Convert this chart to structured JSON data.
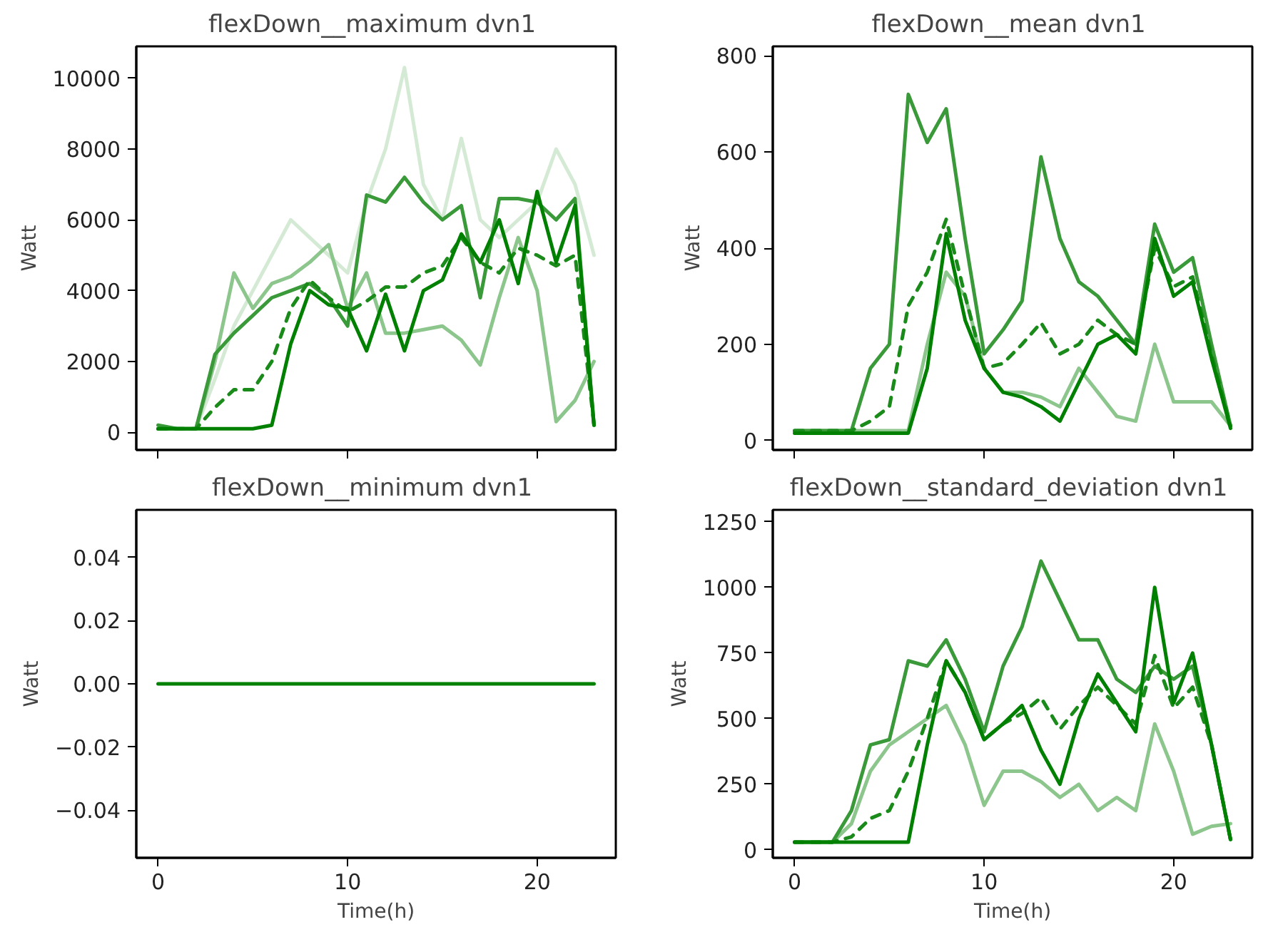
{
  "chart_data": [
    {
      "type": "line",
      "title": "flexDown__maximum  dvn1",
      "ylabel": "Watt",
      "x": [
        0,
        1,
        2,
        3,
        4,
        5,
        6,
        7,
        8,
        9,
        10,
        11,
        12,
        13,
        14,
        15,
        16,
        17,
        18,
        19,
        20,
        21,
        22,
        23
      ],
      "xlim": [
        -1.15,
        24.15
      ],
      "xticks": [
        0,
        10,
        20
      ],
      "ylim": [
        -500,
        10900
      ],
      "yticks": [
        0,
        2000,
        4000,
        6000,
        8000,
        10000
      ],
      "tick_labels": "y",
      "grid": false,
      "series": [
        {
          "color": "#d4ead4",
          "values": [
            100,
            100,
            100,
            1500,
            3000,
            4000,
            5000,
            6000,
            5500,
            5000,
            4500,
            6500,
            8000,
            10300,
            7000,
            6000,
            8300,
            6000,
            5500,
            6000,
            6500,
            8000,
            7000,
            5000
          ]
        },
        {
          "color": "#8cc68c",
          "values": [
            100,
            100,
            100,
            2000,
            4500,
            3500,
            4200,
            4400,
            4800,
            5300,
            3500,
            4500,
            2800,
            2800,
            2900,
            3000,
            2600,
            1900,
            3800,
            5500,
            4000,
            300,
            900,
            2000
          ]
        },
        {
          "color": "#3a9a3a",
          "values": [
            200,
            100,
            100,
            2200,
            2800,
            3300,
            3800,
            4000,
            4200,
            3800,
            3000,
            6700,
            6500,
            7200,
            6500,
            6000,
            6400,
            3800,
            6600,
            6600,
            6500,
            6000,
            6600,
            200
          ]
        },
        {
          "color": "#1a8a1a",
          "line_style": "dashed",
          "values": [
            100,
            100,
            100,
            700,
            1200,
            1200,
            2000,
            3500,
            4300,
            3800,
            3400,
            3700,
            4100,
            4100,
            4500,
            4700,
            5500,
            4800,
            4500,
            5200,
            5000,
            4700,
            5000,
            200
          ]
        },
        {
          "color": "#008000",
          "values": [
            100,
            100,
            100,
            100,
            100,
            100,
            200,
            2500,
            4000,
            3600,
            3500,
            2300,
            3900,
            2300,
            4000,
            4300,
            5600,
            4800,
            6000,
            4200,
            6800,
            4800,
            6400,
            200
          ]
        }
      ]
    },
    {
      "type": "line",
      "title": "flexDown__mean  dvn1",
      "ylabel": "Watt",
      "x": [
        0,
        1,
        2,
        3,
        4,
        5,
        6,
        7,
        8,
        9,
        10,
        11,
        12,
        13,
        14,
        15,
        16,
        17,
        18,
        19,
        20,
        21,
        22,
        23
      ],
      "xlim": [
        -1.15,
        24.15
      ],
      "xticks": [
        0,
        10,
        20
      ],
      "ylim": [
        -20,
        820
      ],
      "yticks": [
        0,
        200,
        400,
        600,
        800
      ],
      "tick_labels": "y",
      "grid": false,
      "series": [
        {
          "color": "#8cc68c",
          "values": [
            20,
            20,
            20,
            20,
            20,
            20,
            20,
            200,
            350,
            300,
            150,
            100,
            100,
            90,
            70,
            150,
            100,
            50,
            40,
            200,
            80,
            80,
            80,
            30
          ]
        },
        {
          "color": "#3a9a3a",
          "values": [
            20,
            20,
            20,
            20,
            150,
            200,
            720,
            620,
            690,
            420,
            180,
            230,
            290,
            590,
            420,
            330,
            300,
            250,
            200,
            450,
            350,
            380,
            200,
            30
          ]
        },
        {
          "color": "#1a8a1a",
          "line_style": "dashed",
          "values": [
            20,
            20,
            20,
            20,
            40,
            70,
            280,
            350,
            460,
            300,
            150,
            160,
            200,
            245,
            180,
            200,
            250,
            220,
            200,
            400,
            320,
            340,
            180,
            30
          ]
        },
        {
          "color": "#008000",
          "values": [
            15,
            15,
            15,
            15,
            15,
            15,
            15,
            150,
            430,
            250,
            150,
            100,
            90,
            70,
            40,
            120,
            200,
            220,
            180,
            420,
            300,
            330,
            170,
            25
          ]
        }
      ]
    },
    {
      "type": "line",
      "title": "flexDown__minimum  dvn1",
      "xlabel": "Time(h)",
      "ylabel": "Watt",
      "x": [
        0,
        1,
        2,
        3,
        4,
        5,
        6,
        7,
        8,
        9,
        10,
        11,
        12,
        13,
        14,
        15,
        16,
        17,
        18,
        19,
        20,
        21,
        22,
        23
      ],
      "xlim": [
        -1.15,
        24.15
      ],
      "xticks": [
        0,
        10,
        20
      ],
      "ylim": [
        -0.055,
        0.055
      ],
      "yticks": [
        {
          "value": -0.04,
          "label": "−0.04"
        },
        {
          "value": -0.02,
          "label": "−0.02"
        },
        {
          "value": 0,
          "label": "0.00"
        },
        {
          "value": 0.02,
          "label": "0.02"
        },
        {
          "value": 0.04,
          "label": "0.04"
        }
      ],
      "grid": false,
      "series": [
        {
          "color": "#008000",
          "values": [
            0,
            0,
            0,
            0,
            0,
            0,
            0,
            0,
            0,
            0,
            0,
            0,
            0,
            0,
            0,
            0,
            0,
            0,
            0,
            0,
            0,
            0,
            0,
            0
          ]
        }
      ]
    },
    {
      "type": "line",
      "title": "flexDown__standard_deviation  dvn1",
      "xlabel": "Time(h)",
      "ylabel": "Watt",
      "x": [
        0,
        1,
        2,
        3,
        4,
        5,
        6,
        7,
        8,
        9,
        10,
        11,
        12,
        13,
        14,
        15,
        16,
        17,
        18,
        19,
        20,
        21,
        22,
        23
      ],
      "xlim": [
        -1.15,
        24.15
      ],
      "xticks": [
        0,
        10,
        20
      ],
      "ylim": [
        -30,
        1295
      ],
      "yticks": [
        0,
        250,
        500,
        750,
        1000,
        1250
      ],
      "grid": false,
      "series": [
        {
          "color": "#8cc68c",
          "values": [
            30,
            30,
            30,
            100,
            300,
            400,
            450,
            500,
            550,
            400,
            170,
            300,
            300,
            260,
            200,
            250,
            150,
            200,
            150,
            480,
            300,
            60,
            90,
            100
          ]
        },
        {
          "color": "#3a9a3a",
          "values": [
            30,
            30,
            30,
            150,
            400,
            420,
            720,
            700,
            800,
            650,
            450,
            700,
            850,
            1100,
            950,
            800,
            800,
            650,
            600,
            700,
            650,
            700,
            400,
            40
          ]
        },
        {
          "color": "#1a8a1a",
          "line_style": "dashed",
          "values": [
            30,
            30,
            30,
            50,
            120,
            150,
            300,
            500,
            720,
            600,
            420,
            480,
            520,
            580,
            460,
            550,
            620,
            550,
            480,
            740,
            540,
            620,
            400,
            40
          ]
        },
        {
          "color": "#008000",
          "values": [
            30,
            30,
            30,
            30,
            30,
            30,
            30,
            400,
            720,
            600,
            420,
            480,
            550,
            380,
            250,
            500,
            670,
            560,
            450,
            1000,
            560,
            750,
            400,
            40
          ]
        }
      ]
    }
  ]
}
